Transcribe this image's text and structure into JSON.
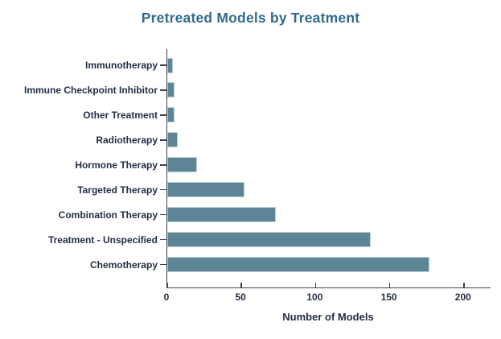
{
  "title": "Pretreated Models by Treatment",
  "chart_data": {
    "type": "bar",
    "orientation": "horizontal",
    "categories": [
      "Immunotherapy",
      "Immune Checkpoint Inhibitor",
      "Other Treatment",
      "Radiotherapy",
      "Hormone Therapy",
      "Targeted Therapy",
      "Combination Therapy",
      "Treatment - Unspecified",
      "Chemotherapy"
    ],
    "values": [
      4,
      5,
      5,
      7,
      20,
      52,
      73,
      137,
      177
    ],
    "xlabel": "Number of Models",
    "ylabel": "",
    "xticks": [
      0,
      50,
      100,
      150,
      200
    ],
    "xlim": [
      0,
      218
    ],
    "grid": false,
    "legend": "none",
    "colors": {
      "bar": "#5d8595",
      "title": "#2f6b8d",
      "text": "#232e44",
      "axis": "#3c4250"
    }
  }
}
